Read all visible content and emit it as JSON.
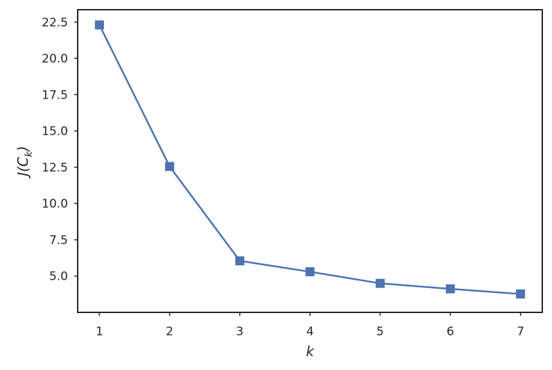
{
  "chart_data": {
    "type": "line",
    "title": "",
    "xlabel": "k",
    "ylabel_main": "J(C",
    "ylabel_sub": "k",
    "ylabel_close": ")",
    "x": [
      1,
      2,
      3,
      4,
      5,
      6,
      7
    ],
    "series": [
      {
        "values": [
          22.3,
          12.55,
          6.05,
          5.3,
          4.5,
          4.12,
          3.77
        ],
        "color": "#4c72b0",
        "marker": "square"
      }
    ],
    "xlim": [
      0.69,
      7.31
    ],
    "ylim": [
      2.5,
      23.35
    ],
    "xticks": [
      1,
      2,
      3,
      4,
      5,
      6,
      7
    ],
    "xtick_labels": [
      "1",
      "2",
      "3",
      "4",
      "5",
      "6",
      "7"
    ],
    "yticks": [
      5.0,
      7.5,
      10.0,
      12.5,
      15.0,
      17.5,
      20.0,
      22.5
    ],
    "ytick_labels": [
      "5.0",
      "7.5",
      "10.0",
      "12.5",
      "15.0",
      "17.5",
      "20.0",
      "22.5"
    ],
    "grid": false,
    "frame_color": "#262626"
  }
}
